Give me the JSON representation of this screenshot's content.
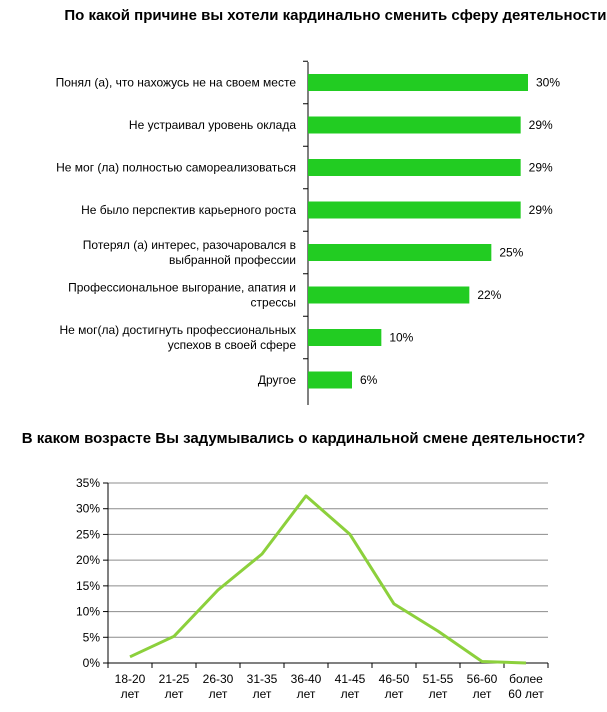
{
  "chart_data": [
    {
      "type": "bar",
      "orientation": "horizontal",
      "title": "По какой причине вы хотели кардинально сменить сферу деятельности?",
      "categories": [
        [
          "Понял (а), что нахожусь не на своем месте"
        ],
        [
          "Не устраивал уровень оклада"
        ],
        [
          "Не мог (ла) полностью самореализоваться"
        ],
        [
          "Не было перспектив карьерного роста"
        ],
        [
          "Потерял (а) интерес, разочаровался в",
          "выбранной профессии"
        ],
        [
          "Профессиональное выгорание, апатия и",
          "стрессы"
        ],
        [
          "Не мог(ла) достигнуть профессиональных",
          "успехов в своей сфере"
        ],
        [
          "Другое"
        ]
      ],
      "values": [
        30,
        29,
        29,
        29,
        25,
        22,
        10,
        6
      ],
      "value_labels": [
        "30%",
        "29%",
        "29%",
        "29%",
        "25%",
        "22%",
        "10%",
        "6%"
      ],
      "color": "#22cc22",
      "xlim": [
        0,
        30
      ]
    },
    {
      "type": "line",
      "title": "В каком возрасте Вы задумывались о кардинальной смене деятельности?",
      "categories": [
        [
          "18-20",
          "лет"
        ],
        [
          "21-25",
          "лет"
        ],
        [
          "26-30",
          "лет"
        ],
        [
          "31-35",
          "лет"
        ],
        [
          "36-40",
          "лет"
        ],
        [
          "41-45",
          "лет"
        ],
        [
          "46-50",
          "лет"
        ],
        [
          "51-55",
          "лет"
        ],
        [
          "56-60",
          "лет"
        ],
        [
          "более",
          "60 лет"
        ]
      ],
      "values": [
        1.2,
        5.2,
        14.2,
        21.2,
        32.5,
        25.0,
        11.5,
        6.2,
        0.3,
        0.0
      ],
      "ylim": [
        0,
        35
      ],
      "yticks": [
        "0%",
        "5%",
        "10%",
        "15%",
        "20%",
        "25%",
        "30%",
        "35%"
      ],
      "grid": true,
      "color": "#8cd03c"
    }
  ]
}
